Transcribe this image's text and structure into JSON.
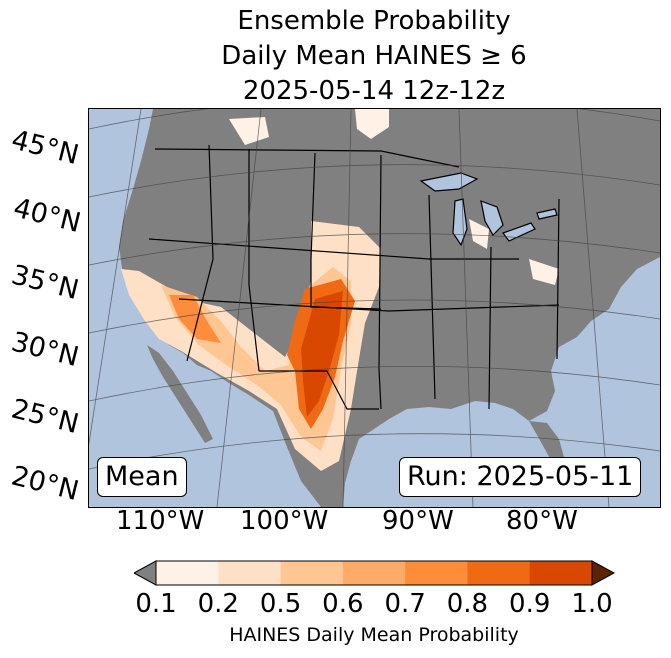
{
  "title": {
    "line1": "Ensemble Probability",
    "line2": "Daily Mean HAINES ≥ 6",
    "line3": "2025-05-14 12z-12z"
  },
  "map": {
    "latitude_labels": [
      "45°N",
      "40°N",
      "35°N",
      "30°N",
      "25°N",
      "20°N"
    ],
    "longitude_labels": [
      "110°W",
      "100°W",
      "90°W",
      "80°W"
    ],
    "stat_label": "Mean",
    "run_label": "Run: 2025-05-11",
    "colors": {
      "ocean": "#b0c4de",
      "land_no_data": "#808080",
      "borders": "#000000",
      "graticule": "#404040",
      "lakes": "#b0c4de"
    }
  },
  "colorbar": {
    "label": "HAINES Daily Mean Probability",
    "ticks": [
      "0.1",
      "0.2",
      "0.5",
      "0.6",
      "0.7",
      "0.8",
      "0.9",
      "1.0"
    ],
    "under_color": "#808080",
    "over_color": "#5a2507",
    "bin_colors": [
      "#fff1e6",
      "#fee0c6",
      "#fdc692",
      "#fdab67",
      "#fd8c3b",
      "#ef6a13",
      "#d94801"
    ]
  }
}
